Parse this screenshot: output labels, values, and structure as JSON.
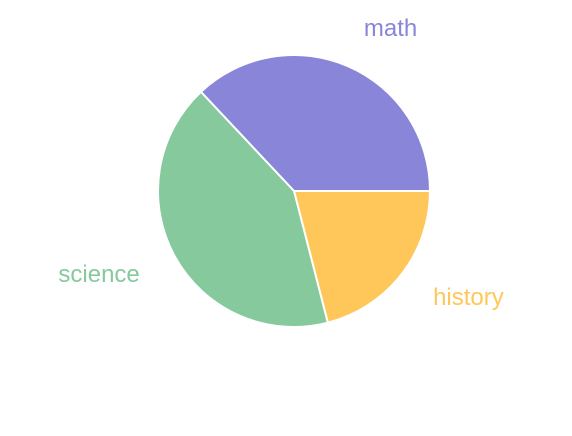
{
  "chart_data": {
    "type": "pie",
    "categories": [
      "math",
      "history",
      "science"
    ],
    "values": [
      37,
      21,
      42
    ],
    "colors": [
      "#8985d9",
      "#ffc75a",
      "#86c99d"
    ],
    "legend": "none",
    "labels_outside": true
  }
}
